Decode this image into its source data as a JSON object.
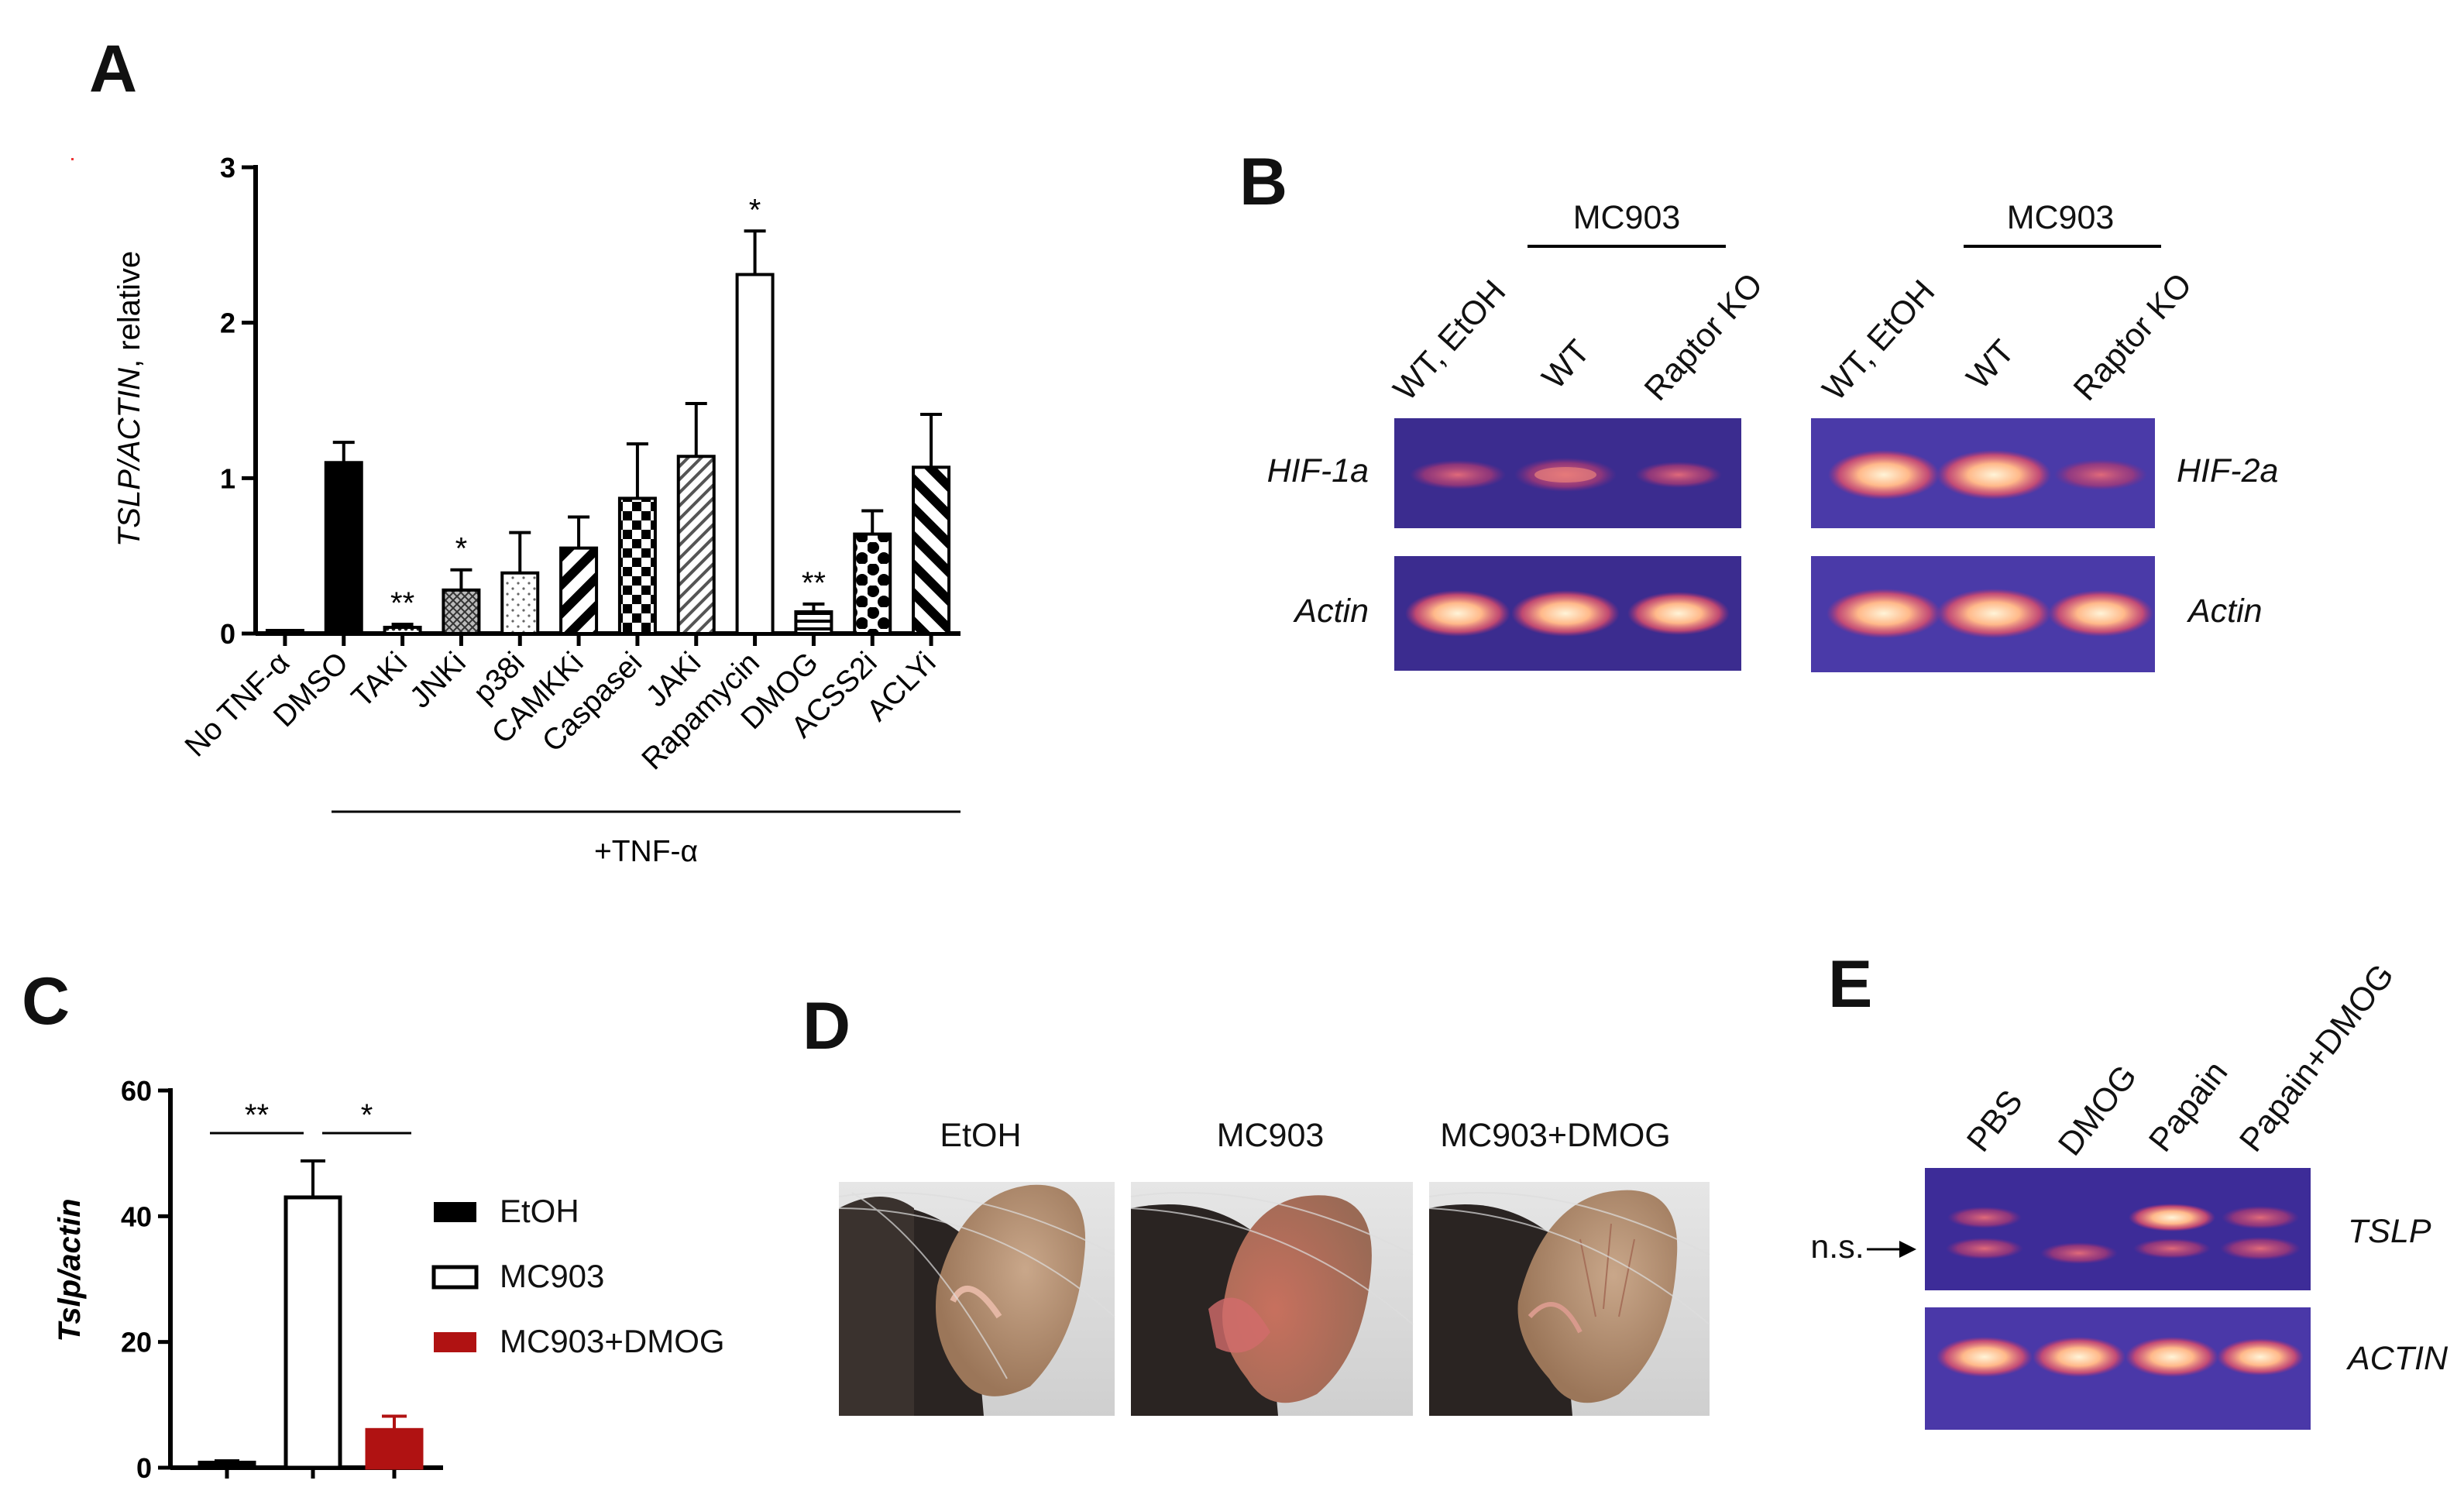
{
  "panels": {
    "a": {
      "letter": "A",
      "ylabel_italic": "TSLP/ACTIN",
      "ylabel_rest": ", relative",
      "group_label": "+TNF-α",
      "chart_data": {
        "type": "bar",
        "categories": [
          "No TNF-α",
          "DMSO",
          "TAKi",
          "JNKi",
          "p38i",
          "CAMKKi",
          "Caspasei",
          "JAKi",
          "Rapamycin",
          "DMOG",
          "ACSS2i",
          "ACLYi"
        ],
        "values": [
          0.02,
          1.1,
          0.04,
          0.28,
          0.39,
          0.55,
          0.87,
          1.14,
          2.31,
          0.14,
          0.64,
          1.07
        ],
        "errors": [
          0.0,
          0.13,
          0.02,
          0.13,
          0.26,
          0.2,
          0.35,
          0.34,
          0.28,
          0.05,
          0.15,
          0.34
        ],
        "significance": [
          "",
          "",
          "**",
          "*",
          "",
          "",
          "",
          "",
          "*",
          "**",
          "",
          ""
        ],
        "patterns": [
          "none",
          "black",
          "dots-dense",
          "crosshatch",
          "dots-sparse",
          "diag-thick",
          "checker",
          "diag-thin",
          "white",
          "hlines",
          "polka",
          "diag-thick-rev"
        ],
        "ylim": [
          0,
          3
        ],
        "yticks": [
          "0",
          "1",
          "2",
          "3"
        ]
      }
    },
    "b": {
      "letter": "B",
      "treatment": "MC903",
      "lanes": [
        "WT, EtOH",
        "WT",
        "Raptor KO"
      ],
      "left_rows": [
        "HIF-1a",
        "Actin"
      ],
      "right_rows": [
        "HIF-2a",
        "Actin"
      ]
    },
    "c": {
      "letter": "C",
      "ylabel": "Tslp/actin",
      "chart_data": {
        "type": "bar",
        "categories": [
          "EtOH",
          "MC903",
          "MC903+DMOG"
        ],
        "values": [
          0.8,
          43,
          6
        ],
        "errors": [
          0.3,
          5.8,
          2.2
        ],
        "ylim": [
          0,
          60
        ],
        "yticks": [
          "0",
          "20",
          "40",
          "60"
        ],
        "comparisons": [
          {
            "from": "EtOH",
            "to": "MC903",
            "label": "**"
          },
          {
            "from": "MC903",
            "to": "MC903+DMOG",
            "label": "*"
          }
        ]
      },
      "legend": [
        {
          "label": "EtOH",
          "color": "#000000"
        },
        {
          "label": "MC903",
          "color": "#ffffff"
        },
        {
          "label": "MC903+DMOG",
          "color": "#b01212"
        }
      ]
    },
    "d": {
      "letter": "D",
      "photos": [
        "EtOH",
        "MC903",
        "MC903+DMOG"
      ]
    },
    "e": {
      "letter": "E",
      "lanes": [
        "PBS",
        "DMOG",
        "Papain",
        "Papain+DMOG"
      ],
      "rows": [
        "TSLP",
        "ACTIN"
      ],
      "ns_label": "n.s."
    }
  },
  "colors": {
    "gel_bg": "#3a2a9c",
    "band_core": "#ffd7a8",
    "band_edge": "#d8405e",
    "accent_red": "#b01212"
  }
}
